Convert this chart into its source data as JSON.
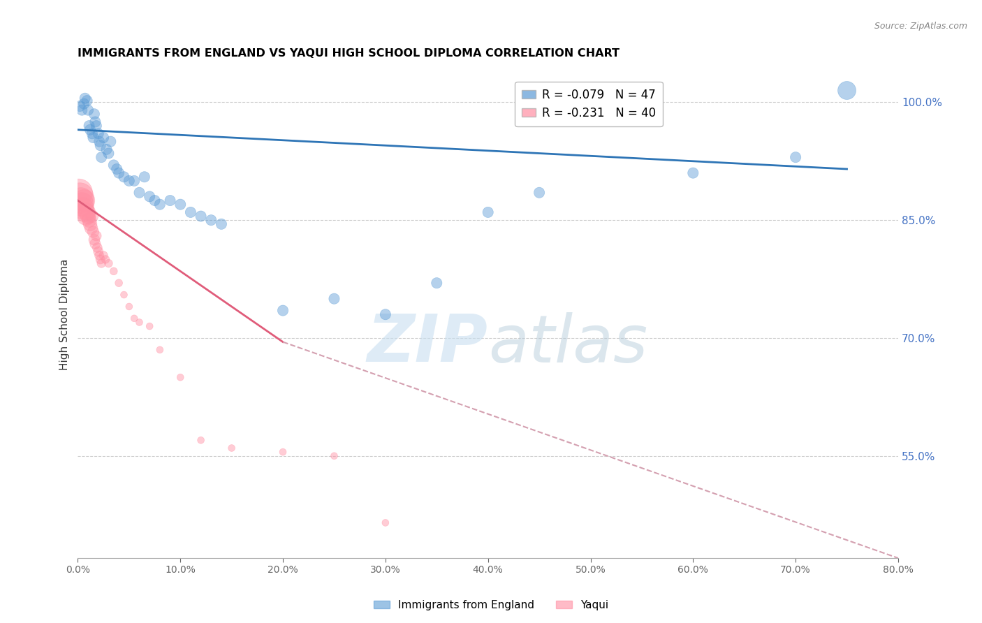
{
  "title": "IMMIGRANTS FROM ENGLAND VS YAQUI HIGH SCHOOL DIPLOMA CORRELATION CHART",
  "source": "Source: ZipAtlas.com",
  "ylabel": "High School Diploma",
  "legend_blue_label": "Immigrants from England",
  "legend_pink_label": "Yaqui",
  "legend_blue_r": "R = -0.079",
  "legend_blue_n": "N = 47",
  "legend_pink_r": "R = -0.231",
  "legend_pink_n": "N = 40",
  "blue_color": "#5B9BD5",
  "pink_color": "#FF8FA3",
  "trend_blue_color": "#2E75B6",
  "trend_pink_color": "#E05C7A",
  "trend_dash_color": "#D4A0B0",
  "watermark_zip": "ZIP",
  "watermark_atlas": "atlas",
  "xlim": [
    0.0,
    80.0
  ],
  "ylim": [
    42.0,
    104.0
  ],
  "yticks": [
    55.0,
    70.0,
    85.0,
    100.0
  ],
  "xticks": [
    0.0,
    10.0,
    20.0,
    30.0,
    40.0,
    50.0,
    60.0,
    70.0,
    80.0
  ],
  "blue_x": [
    0.2,
    0.4,
    0.6,
    0.7,
    0.9,
    1.0,
    1.1,
    1.2,
    1.4,
    1.5,
    1.6,
    1.7,
    1.8,
    2.0,
    2.1,
    2.2,
    2.3,
    2.5,
    2.8,
    3.0,
    3.2,
    3.5,
    3.8,
    4.0,
    4.5,
    5.0,
    5.5,
    6.0,
    6.5,
    7.0,
    7.5,
    8.0,
    9.0,
    10.0,
    11.0,
    12.0,
    13.0,
    14.0,
    20.0,
    25.0,
    30.0,
    35.0,
    40.0,
    45.0,
    60.0,
    70.0,
    75.0
  ],
  "blue_y": [
    99.5,
    99.0,
    99.8,
    100.5,
    100.2,
    99.0,
    97.0,
    96.5,
    96.0,
    95.5,
    98.5,
    97.5,
    97.0,
    96.0,
    95.0,
    94.5,
    93.0,
    95.5,
    94.0,
    93.5,
    95.0,
    92.0,
    91.5,
    91.0,
    90.5,
    90.0,
    90.0,
    88.5,
    90.5,
    88.0,
    87.5,
    87.0,
    87.5,
    87.0,
    86.0,
    85.5,
    85.0,
    84.5,
    73.5,
    75.0,
    73.0,
    77.0,
    86.0,
    88.5,
    91.0,
    93.0,
    101.5
  ],
  "blue_sizes": [
    120,
    120,
    120,
    120,
    120,
    120,
    120,
    120,
    120,
    120,
    120,
    120,
    120,
    120,
    120,
    120,
    120,
    120,
    120,
    120,
    120,
    120,
    120,
    120,
    120,
    120,
    120,
    120,
    120,
    120,
    120,
    120,
    120,
    120,
    120,
    120,
    120,
    120,
    120,
    120,
    120,
    120,
    120,
    120,
    120,
    120,
    350
  ],
  "pink_x": [
    0.1,
    0.2,
    0.3,
    0.4,
    0.5,
    0.6,
    0.7,
    0.8,
    0.9,
    1.0,
    1.1,
    1.2,
    1.3,
    1.4,
    1.5,
    1.6,
    1.7,
    1.8,
    1.9,
    2.0,
    2.1,
    2.2,
    2.3,
    2.5,
    2.7,
    3.0,
    3.5,
    4.0,
    4.5,
    5.0,
    5.5,
    6.0,
    7.0,
    8.0,
    10.0,
    12.0,
    15.0,
    20.0,
    25.0,
    30.0
  ],
  "pink_y": [
    88.5,
    88.0,
    87.5,
    87.0,
    86.5,
    87.5,
    86.0,
    85.5,
    86.0,
    85.5,
    85.0,
    84.5,
    84.0,
    85.5,
    83.5,
    82.5,
    82.0,
    83.0,
    81.5,
    81.0,
    80.5,
    80.0,
    79.5,
    80.5,
    80.0,
    79.5,
    78.5,
    77.0,
    75.5,
    74.0,
    72.5,
    72.0,
    71.5,
    68.5,
    65.0,
    57.0,
    56.0,
    55.5,
    55.0,
    46.5
  ],
  "pink_sizes": [
    800,
    800,
    700,
    600,
    500,
    500,
    400,
    350,
    300,
    250,
    220,
    200,
    180,
    160,
    140,
    130,
    120,
    110,
    100,
    100,
    90,
    90,
    80,
    80,
    70,
    70,
    60,
    60,
    50,
    50,
    50,
    50,
    50,
    50,
    50,
    50,
    50,
    50,
    50,
    50
  ],
  "blue_trend_x0": 0.0,
  "blue_trend_y0": 96.5,
  "blue_trend_x1": 75.0,
  "blue_trend_y1": 91.5,
  "pink_trend_x0": 0.0,
  "pink_trend_y0": 87.5,
  "pink_trend_x1": 20.0,
  "pink_trend_y1": 69.5,
  "pink_dash_x0": 20.0,
  "pink_dash_y0": 69.5,
  "pink_dash_x1": 80.0,
  "pink_dash_y1": 42.0
}
